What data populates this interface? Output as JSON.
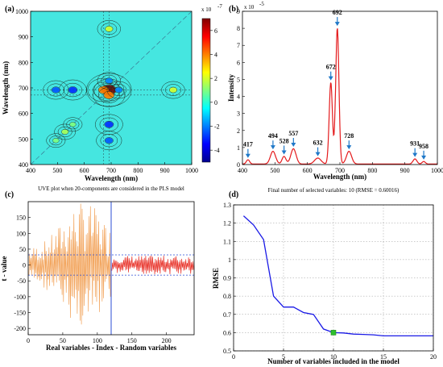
{
  "chart_data": [
    {
      "panel": "(a)",
      "type": "heatmap",
      "xlabel": "Wavelength (nm)",
      "ylabel": "Wavelength (nm)",
      "xlim": [
        400,
        1000
      ],
      "ylim": [
        400,
        1000
      ],
      "xticks": [
        "400",
        "500",
        "600",
        "700",
        "800",
        "900",
        "1000"
      ],
      "yticks": [
        "400",
        "500",
        "600",
        "700",
        "800",
        "900",
        "1000"
      ],
      "colorbar": {
        "exponent": "x 10",
        "exponent_power": "-7",
        "ticks": [
          "6",
          "4",
          "2",
          "0",
          "-2",
          "-4"
        ],
        "range": [
          -5,
          7
        ]
      },
      "hotspots": [
        {
          "x": 692,
          "y": 692,
          "value": 7
        },
        {
          "x": 672,
          "y": 692,
          "value": 4
        },
        {
          "x": 692,
          "y": 672,
          "value": 4
        },
        {
          "x": 557,
          "y": 692,
          "value": -3
        },
        {
          "x": 692,
          "y": 557,
          "value": -3
        },
        {
          "x": 494,
          "y": 692,
          "value": -2.5
        },
        {
          "x": 692,
          "y": 494,
          "value": -2.5
        },
        {
          "x": 931,
          "y": 692,
          "value": 2
        },
        {
          "x": 692,
          "y": 931,
          "value": 2
        },
        {
          "x": 528,
          "y": 528,
          "value": 1.5
        },
        {
          "x": 728,
          "y": 692,
          "value": -2
        },
        {
          "x": 692,
          "y": 728,
          "value": -2
        },
        {
          "x": 494,
          "y": 494,
          "value": 1
        },
        {
          "x": 557,
          "y": 557,
          "value": 1
        }
      ]
    },
    {
      "panel": "(b)",
      "type": "line",
      "xlabel": "Wavelength (nm)",
      "ylabel": "Intensity",
      "exponent": "x 10",
      "exponent_power": "-5",
      "xlim": [
        400,
        1000
      ],
      "ylim": [
        0,
        9
      ],
      "xticks": [
        "400",
        "500",
        "600",
        "700",
        "800",
        "900",
        "1000"
      ],
      "yticks": [
        "0",
        "1",
        "2",
        "3",
        "4",
        "5",
        "6",
        "7",
        "8",
        "9"
      ],
      "peaks": [
        {
          "x": 417,
          "y": 0.25,
          "label": "417"
        },
        {
          "x": 494,
          "y": 0.75,
          "label": "494"
        },
        {
          "x": 528,
          "y": 0.45,
          "label": "528"
        },
        {
          "x": 557,
          "y": 0.9,
          "label": "557"
        },
        {
          "x": 632,
          "y": 0.35,
          "label": "632"
        },
        {
          "x": 672,
          "y": 4.8,
          "label": "672"
        },
        {
          "x": 692,
          "y": 8.0,
          "label": "692"
        },
        {
          "x": 728,
          "y": 0.75,
          "label": "728"
        },
        {
          "x": 931,
          "y": 0.3,
          "label": "931"
        },
        {
          "x": 958,
          "y": 0.15,
          "label": "958"
        }
      ]
    },
    {
      "panel": "(c)",
      "type": "line",
      "title": "UVE plot when 20-components are considered in the PLS model",
      "xlabel": "Real variables - Index - Random variables",
      "ylabel": "t - value",
      "xlim": [
        0,
        240
      ],
      "ylim": [
        -220,
        200
      ],
      "xticks": [
        "0",
        "50",
        "100",
        "150",
        "200"
      ],
      "yticks": [
        "-200",
        "-150",
        "-100",
        "-50",
        "0",
        "50",
        "100",
        "150"
      ],
      "cutoff": 120,
      "thresholds": [
        32,
        -32
      ],
      "series": [
        {
          "role": "real",
          "color": "#f2a35a",
          "range": [
            1,
            120
          ],
          "amplitude_max": 200
        },
        {
          "role": "random",
          "color": "#e8332a",
          "range": [
            121,
            240
          ],
          "amplitude_max": 30
        }
      ]
    },
    {
      "panel": "(d)",
      "type": "line",
      "title": "Final number of selected variables: 10   (RMSE = 0.60016)",
      "xlabel": "Number of variables included in the model",
      "ylabel": "RMSE",
      "xlim": [
        0,
        20
      ],
      "ylim": [
        0.5,
        1.3
      ],
      "xticks": [
        "0",
        "5",
        "10",
        "15",
        "20"
      ],
      "yticks": [
        "0.5",
        "0.6",
        "0.7",
        "0.8",
        "0.9",
        "1",
        "1.1",
        "1.2",
        "1.3"
      ],
      "x": [
        1,
        2,
        3,
        4,
        5,
        6,
        7,
        8,
        9,
        10,
        11,
        12,
        13,
        14,
        15,
        16,
        17,
        18,
        19,
        20
      ],
      "y": [
        1.24,
        1.19,
        1.11,
        0.8,
        0.74,
        0.74,
        0.71,
        0.7,
        0.62,
        0.6,
        0.598,
        0.592,
        0.59,
        0.588,
        0.582,
        0.582,
        0.582,
        0.582,
        0.582,
        0.582
      ],
      "selected": {
        "x": 10,
        "y": 0.6
      }
    }
  ]
}
